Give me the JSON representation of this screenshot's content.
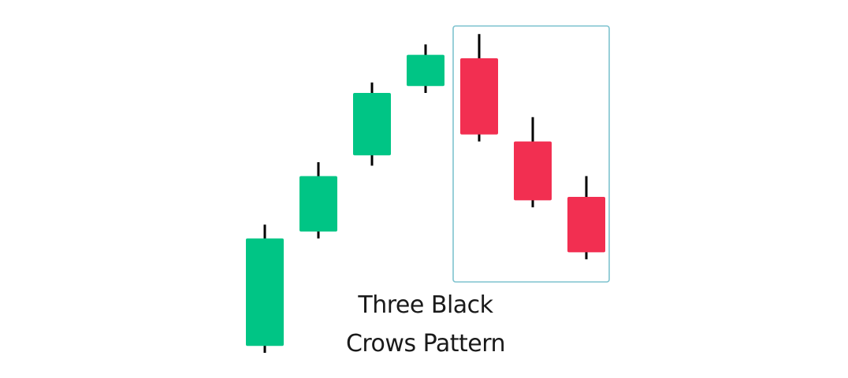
{
  "caption": {
    "line1": "Three Black",
    "line2": "Crows Pattern"
  },
  "colors": {
    "bullish": "#00c585",
    "bearish": "#f22f51",
    "wick": "#000000",
    "highlight_border": "#7fc3cf",
    "background": "#ffffff"
  },
  "chart_data": {
    "type": "candlestick",
    "candles": [
      {
        "direction": "up",
        "open": 0.07,
        "close": 0.38,
        "high": 0.42,
        "low": 0.05
      },
      {
        "direction": "up",
        "open": 0.4,
        "close": 0.56,
        "high": 0.6,
        "low": 0.38
      },
      {
        "direction": "up",
        "open": 0.62,
        "close": 0.8,
        "high": 0.83,
        "low": 0.59
      },
      {
        "direction": "up",
        "open": 0.82,
        "close": 0.91,
        "high": 0.94,
        "low": 0.8
      },
      {
        "direction": "down",
        "open": 0.9,
        "close": 0.68,
        "high": 0.97,
        "low": 0.66
      },
      {
        "direction": "down",
        "open": 0.66,
        "close": 0.49,
        "high": 0.73,
        "low": 0.47
      },
      {
        "direction": "down",
        "open": 0.5,
        "close": 0.34,
        "high": 0.56,
        "low": 0.32
      }
    ],
    "highlighted_candles": [
      4,
      5,
      6
    ]
  }
}
